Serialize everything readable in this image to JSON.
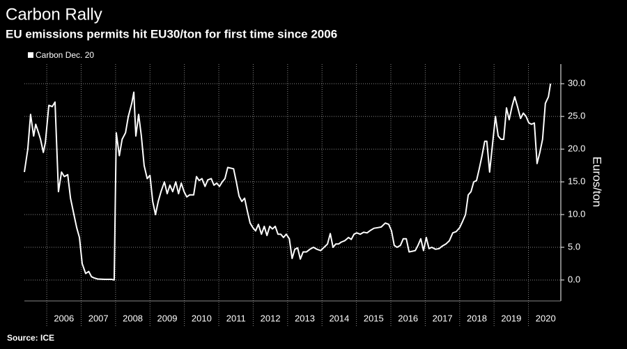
{
  "chart_data": {
    "type": "line",
    "title": "Carbon Rally",
    "subtitle": "EU emissions permits hit EU30/ton for first  time since 2006",
    "y_label": "Euros/ton",
    "source": "Source: ICE",
    "xlim": [
      2005.35,
      2020.94
    ],
    "ylim": [
      -3.2,
      33
    ],
    "xticks": [
      {
        "value": 2006,
        "label": "2006"
      },
      {
        "value": 2007,
        "label": "2007"
      },
      {
        "value": 2008,
        "label": "2008"
      },
      {
        "value": 2009,
        "label": "2009"
      },
      {
        "value": 2010,
        "label": "2010"
      },
      {
        "value": 2011,
        "label": "2011"
      },
      {
        "value": 2012,
        "label": "2012"
      },
      {
        "value": 2013,
        "label": "2013"
      },
      {
        "value": 2014,
        "label": "2014"
      },
      {
        "value": 2015,
        "label": "2015"
      },
      {
        "value": 2016,
        "label": "2016"
      },
      {
        "value": 2017,
        "label": "2017"
      },
      {
        "value": 2018,
        "label": "2018"
      },
      {
        "value": 2019,
        "label": "2019"
      },
      {
        "value": 2020,
        "label": "2020"
      }
    ],
    "yticks": [
      {
        "value": 0,
        "label": "0.0"
      },
      {
        "value": 5,
        "label": "5.0"
      },
      {
        "value": 10,
        "label": "10.0"
      },
      {
        "value": 15,
        "label": "15.0"
      },
      {
        "value": 20,
        "label": "20.0"
      },
      {
        "value": 25,
        "label": "25.0"
      },
      {
        "value": 30,
        "label": "30.0"
      }
    ],
    "grid": true,
    "legend": "top-left",
    "x": [
      2005.35,
      2005.45,
      2005.53,
      2005.62,
      2005.68,
      2005.76,
      2005.82,
      2005.9,
      2005.96,
      2006.06,
      2006.16,
      2006.24,
      2006.34,
      2006.43,
      2006.51,
      2006.61,
      2006.69,
      2006.79,
      2006.87,
      2006.95,
      2007.03,
      2007.13,
      2007.22,
      2007.3,
      2007.38,
      2007.48,
      2007.68,
      2007.88,
      2007.96,
      2008.02,
      2008.11,
      2008.19,
      2008.29,
      2008.37,
      2008.47,
      2008.53,
      2008.59,
      2008.67,
      2008.75,
      2008.83,
      2008.92,
      2009.0,
      2009.08,
      2009.16,
      2009.24,
      2009.32,
      2009.42,
      2009.5,
      2009.58,
      2009.66,
      2009.75,
      2009.83,
      2009.91,
      2009.99,
      2010.07,
      2010.15,
      2010.27,
      2010.35,
      2010.43,
      2010.51,
      2010.6,
      2010.68,
      2010.78,
      2010.86,
      2010.94,
      2011.02,
      2011.1,
      2011.18,
      2011.26,
      2011.43,
      2011.51,
      2011.59,
      2011.67,
      2011.75,
      2011.83,
      2011.91,
      2011.99,
      2012.07,
      2012.15,
      2012.24,
      2012.32,
      2012.4,
      2012.48,
      2012.56,
      2012.64,
      2012.72,
      2012.8,
      2012.88,
      2012.96,
      2013.05,
      2013.13,
      2013.21,
      2013.29,
      2013.37,
      2013.45,
      2013.55,
      2013.65,
      2013.75,
      2013.85,
      2013.96,
      2014.06,
      2014.16,
      2014.24,
      2014.32,
      2014.4,
      2014.48,
      2014.56,
      2014.66,
      2014.77,
      2014.85,
      2014.93,
      2015.01,
      2015.11,
      2015.21,
      2015.31,
      2015.41,
      2015.51,
      2015.62,
      2015.72,
      2015.84,
      2015.94,
      2016.02,
      2016.1,
      2016.18,
      2016.28,
      2016.36,
      2016.45,
      2016.53,
      2016.63,
      2016.71,
      2016.79,
      2016.87,
      2016.95,
      2017.03,
      2017.11,
      2017.19,
      2017.3,
      2017.4,
      2017.5,
      2017.6,
      2017.7,
      2017.8,
      2017.9,
      2018.0,
      2018.09,
      2018.17,
      2018.25,
      2018.33,
      2018.41,
      2018.49,
      2018.57,
      2018.65,
      2018.73,
      2018.79,
      2018.87,
      2018.96,
      2019.04,
      2019.12,
      2019.2,
      2019.28,
      2019.36,
      2019.44,
      2019.52,
      2019.6,
      2019.68,
      2019.77,
      2019.85,
      2019.93,
      2020.01,
      2020.09,
      2020.17,
      2020.25,
      2020.33,
      2020.41,
      2020.49,
      2020.58,
      2020.64
    ],
    "series": [
      {
        "name": "Carbon Dec. 20",
        "color": "#ffffff",
        "values": [
          16.5,
          20,
          25.3,
          22,
          23.8,
          22.5,
          21.5,
          19.5,
          21,
          26.7,
          26.5,
          27.2,
          13.5,
          16.5,
          15.8,
          16.1,
          12.5,
          10,
          8,
          6.5,
          2.5,
          1.0,
          1.3,
          0.5,
          0.3,
          0.15,
          0.1,
          0.1,
          0.0,
          22.5,
          19,
          21.5,
          22.5,
          25,
          27,
          28.7,
          22,
          25.3,
          22,
          17.5,
          15.5,
          16,
          12,
          10,
          12,
          13.5,
          15,
          13.2,
          14.5,
          13.5,
          15,
          13.2,
          14.8,
          13.5,
          12.7,
          13,
          13,
          15.8,
          15.2,
          15.5,
          14.3,
          15.3,
          15.5,
          14.5,
          14.8,
          14.3,
          15,
          15.5,
          17.2,
          17,
          15,
          12.8,
          12,
          12.5,
          10.5,
          8.7,
          8,
          7.5,
          8.5,
          7,
          8.2,
          6.8,
          8.2,
          7.8,
          8.2,
          7,
          7,
          6.5,
          7,
          6.3,
          3.3,
          4.7,
          4.9,
          3.2,
          4.3,
          4.3,
          4.7,
          5,
          4.7,
          4.5,
          5,
          5.5,
          7.1,
          5,
          5.5,
          5.5,
          5.8,
          6,
          6.5,
          6.2,
          7,
          7.2,
          7,
          7.3,
          7.2,
          7.6,
          7.9,
          8,
          8.1,
          8.7,
          8.5,
          7.5,
          5.3,
          5.0,
          5.3,
          6.3,
          6.3,
          4.3,
          4.4,
          4.5,
          5.3,
          6.3,
          4.5,
          6.5,
          4.8,
          5,
          4.7,
          4.8,
          5.2,
          5.5,
          6,
          7.2,
          7.4,
          8,
          9,
          10,
          13,
          13.5,
          15,
          15.2,
          17,
          19,
          21.2,
          21.2,
          16.5,
          21,
          25,
          22,
          21.5,
          21.5,
          26.3,
          24.5,
          26.5,
          28,
          26.5,
          24.7,
          25.5,
          25,
          24,
          23.8,
          24,
          17.8,
          19.5,
          21.5,
          27,
          28,
          30
        ]
      }
    ]
  }
}
